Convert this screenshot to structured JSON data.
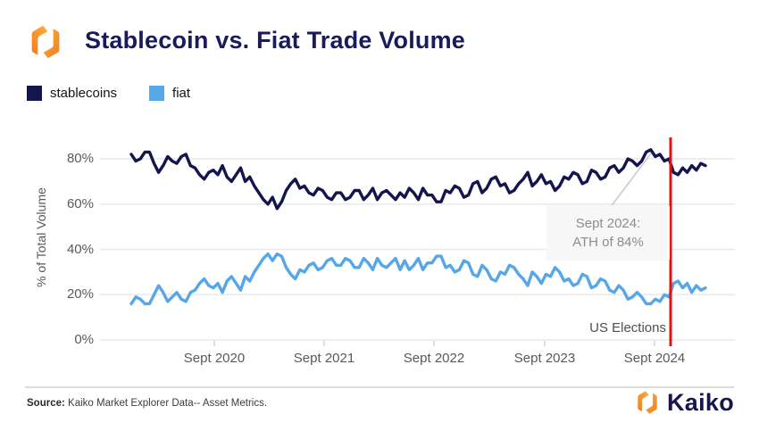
{
  "header": {
    "title": "Stablecoin vs. Fiat Trade Volume",
    "logo": "kaiko-hex-mark"
  },
  "legend": {
    "items": [
      {
        "label": "stablecoins",
        "color": "#14154c"
      },
      {
        "label": "fiat",
        "color": "#57a7e8"
      }
    ]
  },
  "chart_data": {
    "type": "line",
    "title": "Stablecoin vs. Fiat Trade Volume",
    "ylabel": "% of Total Volume",
    "ylim": [
      0,
      90
    ],
    "grid": "horizontal",
    "y_ticks": [
      {
        "label": "80%",
        "value": 80
      },
      {
        "label": "60%",
        "value": 60
      },
      {
        "label": "40%",
        "value": 40
      },
      {
        "label": "20%",
        "value": 20
      },
      {
        "label": "0%",
        "value": 0
      }
    ],
    "x_tick_labels": [
      "Sept 2020",
      "Sept 2021",
      "Sept 2022",
      "Sept 2023",
      "Sept 2024"
    ],
    "series": [
      {
        "name": "stablecoins",
        "color": "#14154c",
        "values": [
          82,
          79,
          80,
          83,
          83,
          78,
          74,
          77,
          81,
          79,
          78,
          81,
          82,
          77,
          76,
          73,
          71,
          74,
          75,
          73,
          77,
          72,
          70,
          73,
          76,
          70,
          72,
          68,
          65,
          62,
          60,
          63,
          58,
          61,
          66,
          69,
          71,
          67,
          68,
          65,
          64,
          67,
          66,
          63,
          62,
          65,
          65,
          62,
          63,
          66,
          66,
          62,
          64,
          67,
          62,
          65,
          66,
          64,
          62,
          65,
          63,
          67,
          65,
          62,
          67,
          64,
          64,
          61,
          61,
          66,
          65,
          68,
          67,
          63,
          64,
          69,
          70,
          65,
          67,
          71,
          72,
          68,
          69,
          65,
          66,
          69,
          71,
          74,
          68,
          70,
          73,
          69,
          70,
          66,
          68,
          72,
          71,
          74,
          73,
          69,
          70,
          75,
          74,
          71,
          72,
          76,
          77,
          74,
          76,
          80,
          79,
          77,
          79,
          83,
          84,
          81,
          82,
          79,
          80,
          74,
          73,
          76,
          74,
          77,
          75,
          78,
          77
        ]
      },
      {
        "name": "fiat",
        "color": "#57a7e8",
        "values": [
          16,
          19,
          18,
          16,
          16,
          20,
          24,
          21,
          17,
          19,
          21,
          18,
          17,
          21,
          22,
          25,
          27,
          24,
          23,
          25,
          21,
          26,
          28,
          25,
          22,
          28,
          26,
          30,
          33,
          36,
          38,
          35,
          38,
          37,
          32,
          29,
          27,
          31,
          30,
          33,
          34,
          31,
          32,
          35,
          36,
          33,
          33,
          36,
          35,
          32,
          32,
          36,
          34,
          31,
          36,
          33,
          32,
          34,
          36,
          31,
          35,
          31,
          33,
          36,
          31,
          34,
          34,
          37,
          37,
          32,
          33,
          30,
          31,
          35,
          34,
          29,
          28,
          33,
          31,
          27,
          26,
          30,
          29,
          33,
          32,
          29,
          27,
          24,
          30,
          28,
          25,
          29,
          28,
          32,
          30,
          26,
          27,
          24,
          25,
          29,
          28,
          23,
          24,
          27,
          26,
          22,
          21,
          24,
          22,
          18,
          19,
          21,
          19,
          16,
          16,
          18,
          17,
          20,
          19,
          25,
          26,
          23,
          25,
          21,
          24,
          22,
          23
        ]
      }
    ],
    "event_line": {
      "label": "US Elections",
      "color": "#e51212"
    },
    "annotation": {
      "line1": "Sept 2024:",
      "line2": "ATH of 84%",
      "points_to": "stablecoins peak Sept 2024"
    }
  },
  "footer": {
    "source_label": "Source:",
    "source_text": " Kaiko Market Explorer Data-- Asset Metrics.",
    "brand_name": "Kaiko"
  },
  "colors": {
    "title_navy": "#1a1a5c",
    "grid": "#e9e9e9",
    "axis_text": "#595959",
    "annotation_text": "#8d8d8d",
    "logo_orange_light": "#fbb03b",
    "logo_orange_dark": "#f47b20"
  }
}
